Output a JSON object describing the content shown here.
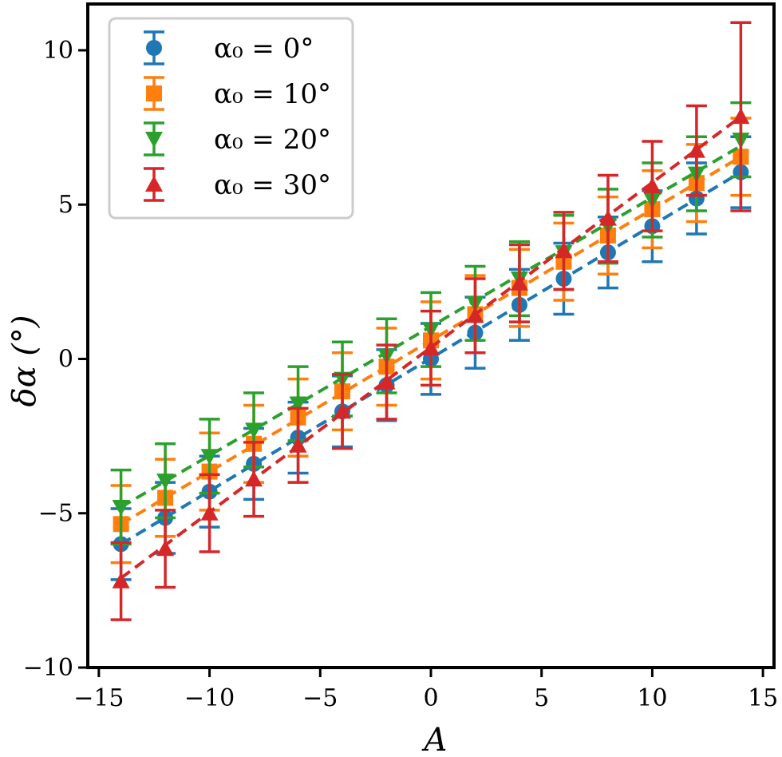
{
  "chart_data": {
    "type": "scatter",
    "title": "",
    "xlabel": "A",
    "ylabel": "δα (°)",
    "xlim": [
      -15.5,
      15.5
    ],
    "ylim": [
      -10,
      11.5
    ],
    "xticks": [
      -15,
      -10,
      -5,
      0,
      5,
      10,
      15
    ],
    "xtick_labels": [
      "−15",
      "−10",
      "−5",
      "0",
      "5",
      "10",
      "15"
    ],
    "yticks": [
      -10,
      -5,
      0,
      5,
      10
    ],
    "ytick_labels": [
      "−10",
      "−5",
      "0",
      "5",
      "10"
    ],
    "grid": false,
    "legend_position": "top-left",
    "x": [
      -14,
      -12,
      -10,
      -8,
      -6,
      -4,
      -2,
      0,
      2,
      4,
      6,
      8,
      10,
      12,
      14
    ],
    "series": [
      {
        "name": "α0 = 0°",
        "legend_label": "α₀ = 0°",
        "color": "#1f77b4",
        "marker": "circle",
        "values": [
          -6.0,
          -5.15,
          -4.3,
          -3.4,
          -2.55,
          -1.7,
          -0.85,
          0.0,
          0.85,
          1.75,
          2.6,
          3.45,
          4.3,
          5.2,
          6.05
        ],
        "errors": [
          1.15,
          1.15,
          1.15,
          1.15,
          1.15,
          1.15,
          1.15,
          1.15,
          1.15,
          1.15,
          1.15,
          1.15,
          1.15,
          1.15,
          1.15
        ],
        "fit": [
          -6.0,
          6.05
        ]
      },
      {
        "name": "α0 = 10°",
        "legend_label": "α₀ = 10°",
        "color": "#ff7f0e",
        "marker": "square",
        "values": [
          -5.35,
          -4.5,
          -3.65,
          -2.75,
          -1.9,
          -1.05,
          -0.25,
          0.6,
          1.45,
          2.3,
          3.15,
          4.0,
          4.85,
          5.7,
          6.55
        ],
        "errors": [
          1.25,
          1.25,
          1.25,
          1.25,
          1.25,
          1.25,
          1.25,
          1.25,
          1.25,
          1.25,
          1.25,
          1.25,
          1.25,
          1.25,
          1.25
        ],
        "fit": [
          -5.35,
          6.55
        ]
      },
      {
        "name": "α0 = 20°",
        "legend_label": "α₀ = 20°",
        "color": "#2ca02c",
        "marker": "triangle-down",
        "values": [
          -4.8,
          -3.95,
          -3.15,
          -2.3,
          -1.45,
          -0.65,
          0.1,
          0.95,
          1.8,
          2.6,
          3.45,
          4.3,
          5.15,
          6.0,
          7.1
        ],
        "errors": [
          1.2,
          1.2,
          1.2,
          1.2,
          1.2,
          1.2,
          1.2,
          1.2,
          1.2,
          1.2,
          1.2,
          1.2,
          1.2,
          1.2,
          1.2
        ],
        "fit": [
          -4.8,
          6.9
        ]
      },
      {
        "name": "α0 = 30°",
        "legend_label": "α₀ = 30°",
        "color": "#d62728",
        "marker": "triangle-up",
        "values": [
          -7.2,
          -6.15,
          -5.0,
          -3.9,
          -2.8,
          -1.7,
          -0.75,
          0.35,
          1.4,
          2.45,
          3.5,
          4.55,
          5.6,
          6.75,
          7.85
        ],
        "errors": [
          1.25,
          1.25,
          1.25,
          1.2,
          1.2,
          1.2,
          1.2,
          1.2,
          1.2,
          1.25,
          1.25,
          1.4,
          1.45,
          1.45,
          3.05
        ],
        "fit": [
          -7.1,
          7.85
        ]
      }
    ]
  }
}
